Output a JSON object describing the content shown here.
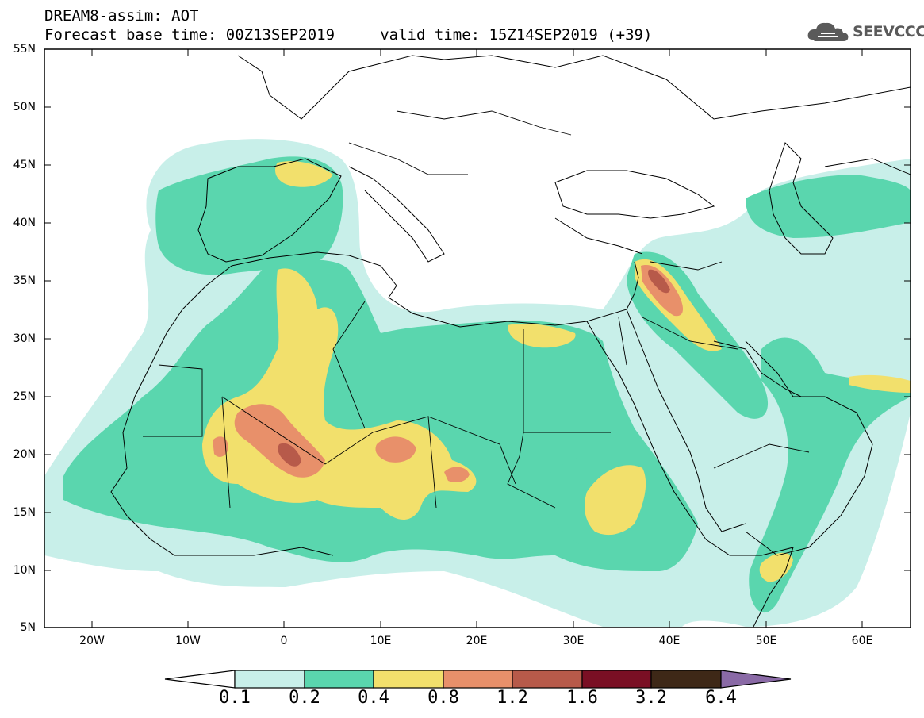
{
  "header": {
    "title": "DREAM8-assim: AOT",
    "line2": "Forecast base time: 00Z13SEP2019     valid time: 15Z14SEP2019 (+39)",
    "logo_text": "SEEVCCC"
  },
  "axes": {
    "lat_labels": [
      "55N",
      "50N",
      "45N",
      "40N",
      "35N",
      "30N",
      "25N",
      "20N",
      "15N",
      "10N",
      "5N"
    ],
    "lon_labels": [
      "20W",
      "10W",
      "0",
      "10E",
      "20E",
      "30E",
      "40E",
      "50E",
      "60E"
    ]
  },
  "colorbar": {
    "labels": [
      "0.1",
      "0.2",
      "0.4",
      "0.8",
      "1.2",
      "1.6",
      "3.2",
      "6.4"
    ],
    "colors": [
      "#ffffff",
      "#c8efe9",
      "#5ad6ae",
      "#f2e06c",
      "#e8906a",
      "#b75a4a",
      "#7a0f24",
      "#3e2817",
      "#8a6aa6"
    ]
  },
  "map": {
    "lon_range": [
      -25,
      65
    ],
    "lat_range": [
      5,
      55
    ],
    "field_colors": {
      "c1": "#c8efe9",
      "c2": "#5ad6ae",
      "c3": "#f2e06c",
      "c4": "#e8906a",
      "c5": "#b75a4a"
    }
  }
}
